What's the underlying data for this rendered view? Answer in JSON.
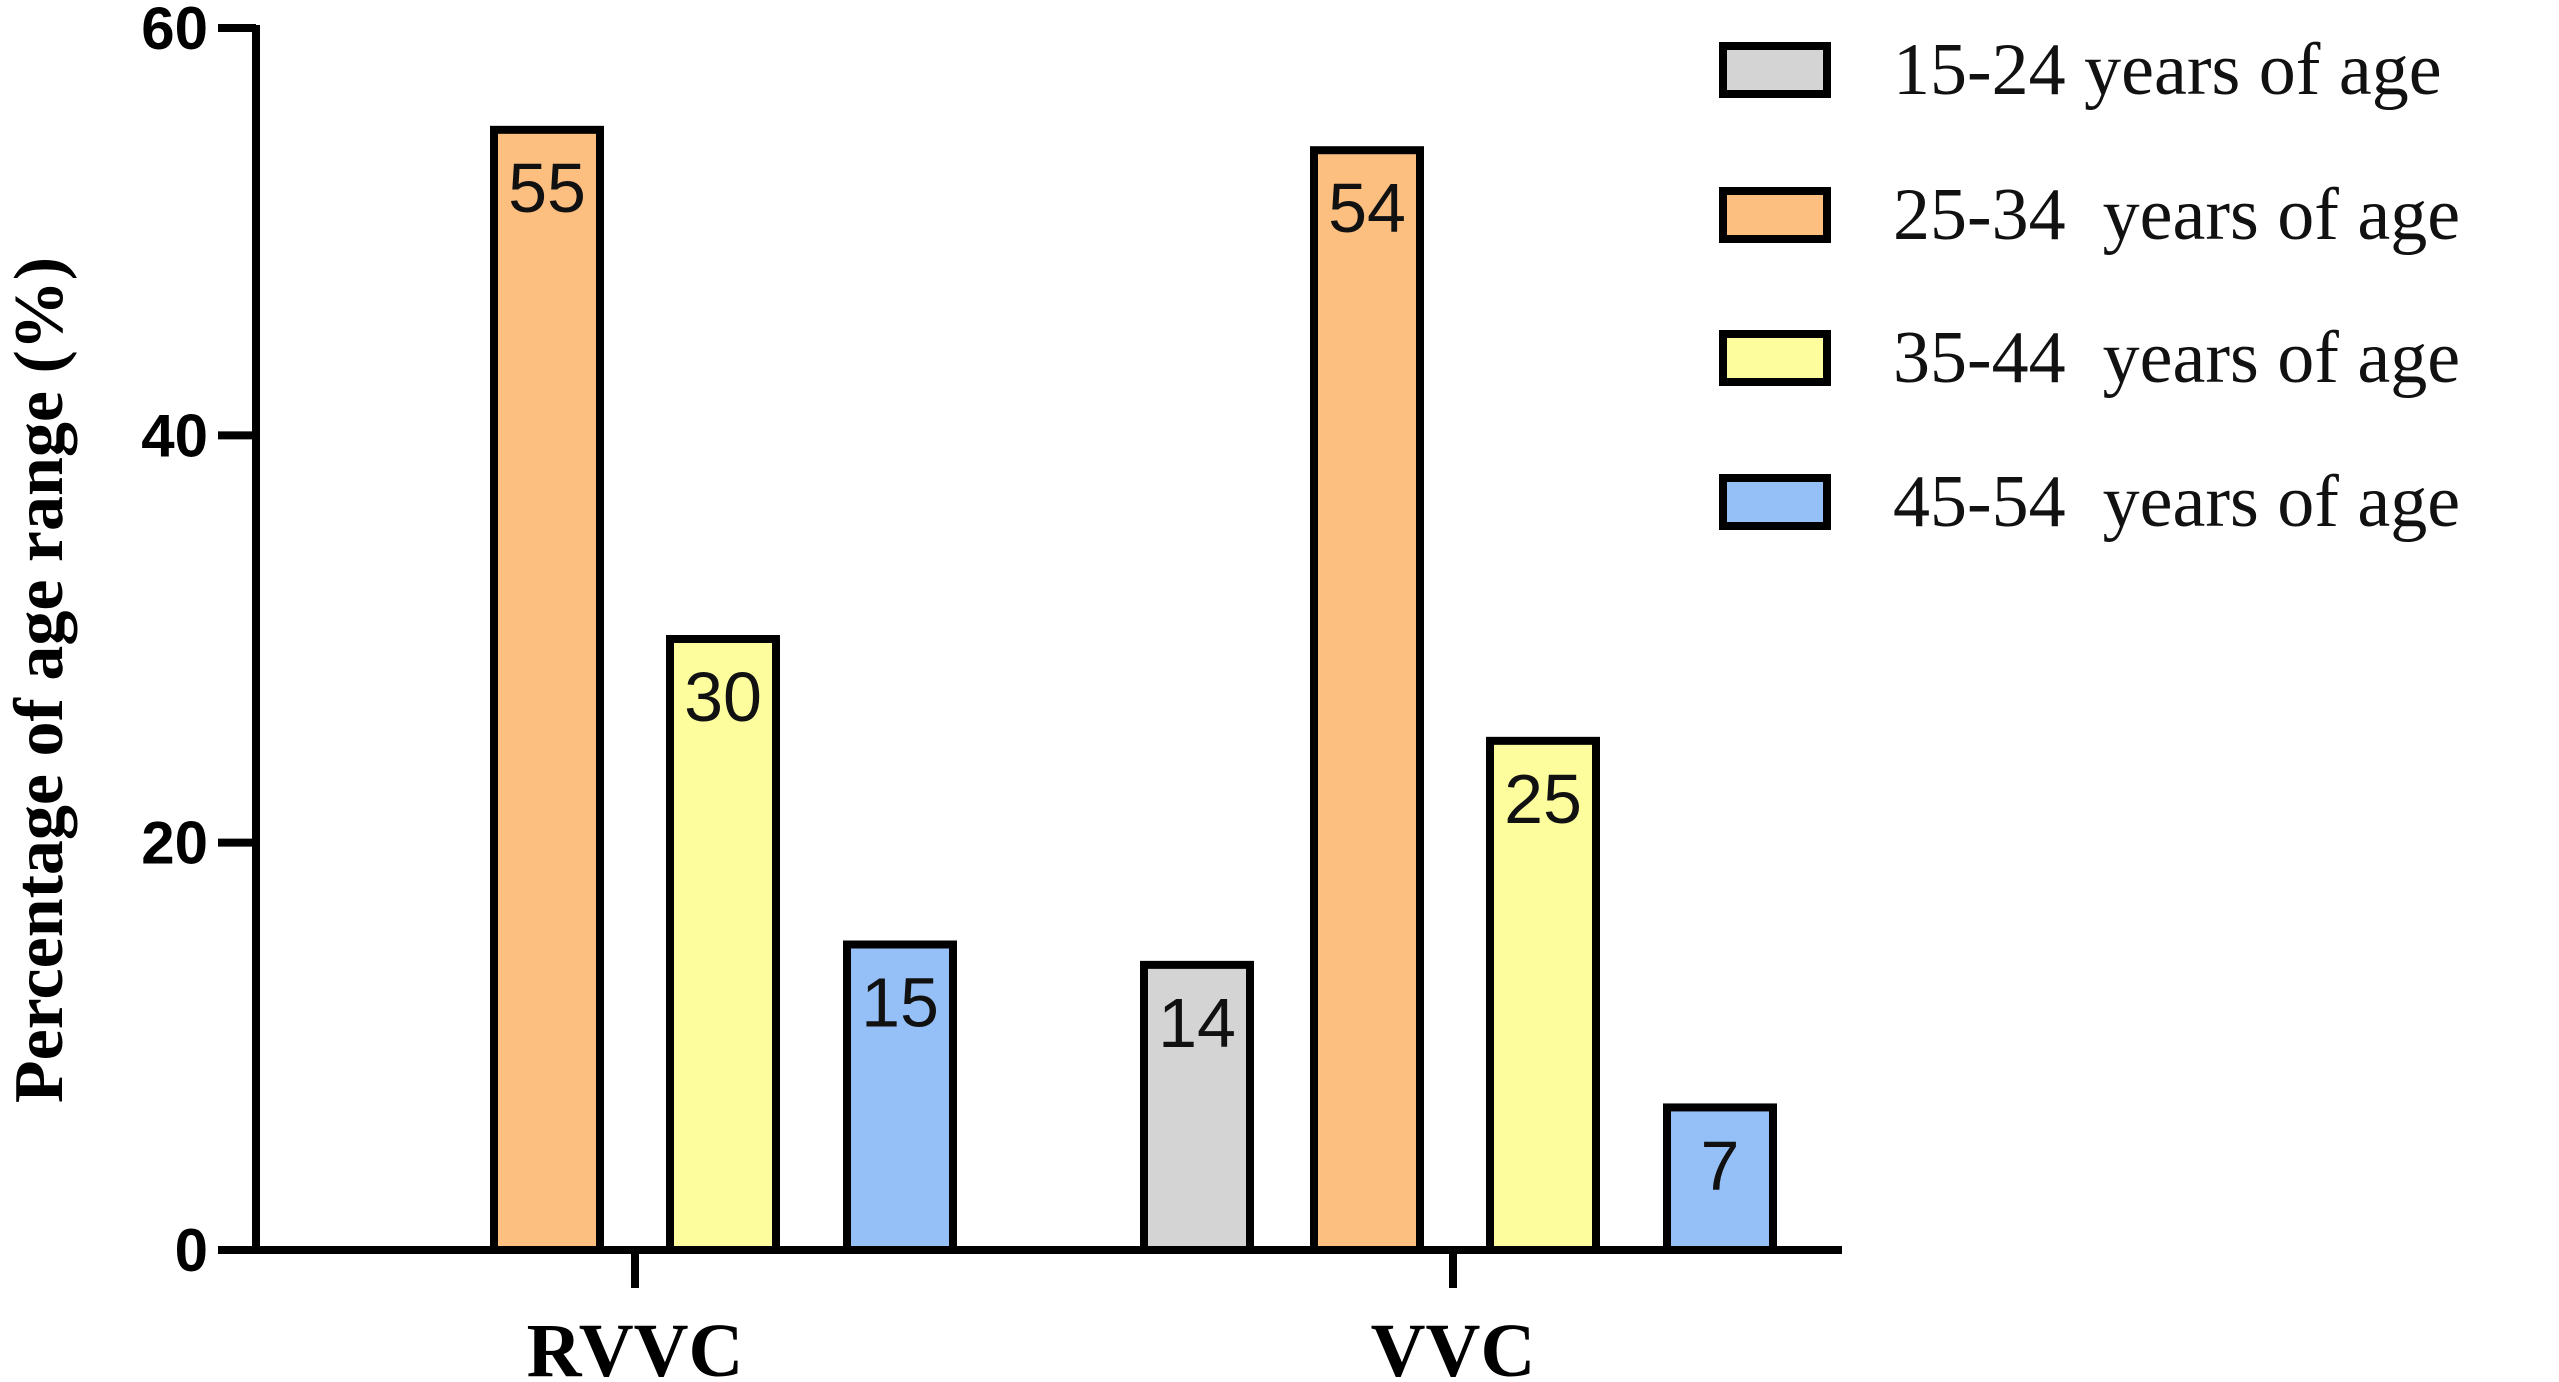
{
  "chart_data": {
    "type": "bar",
    "title": "",
    "xlabel": "",
    "ylabel": "Percentage of age range (%)",
    "ylim": [
      0,
      60
    ],
    "yticks": [
      0,
      20,
      40,
      60
    ],
    "categories": [
      "RVVC",
      "VVC"
    ],
    "legend_position": "top-right",
    "grid": false,
    "series": [
      {
        "name": "15-24 years of age",
        "color": "#d4d4d4",
        "values": [
          null,
          14
        ],
        "labels": [
          "",
          "14"
        ]
      },
      {
        "name": "25-34  years of age",
        "color": "#fcbf80",
        "values": [
          55,
          54
        ],
        "labels": [
          "55",
          "54"
        ]
      },
      {
        "name": "35-44  years of age",
        "color": "#fdfd9e",
        "values": [
          30,
          25
        ],
        "labels": [
          "30",
          "25"
        ]
      },
      {
        "name": "45-54  years of age",
        "color": "#95c0f7",
        "values": [
          15,
          7
        ],
        "labels": [
          "15",
          "7"
        ]
      }
    ]
  }
}
